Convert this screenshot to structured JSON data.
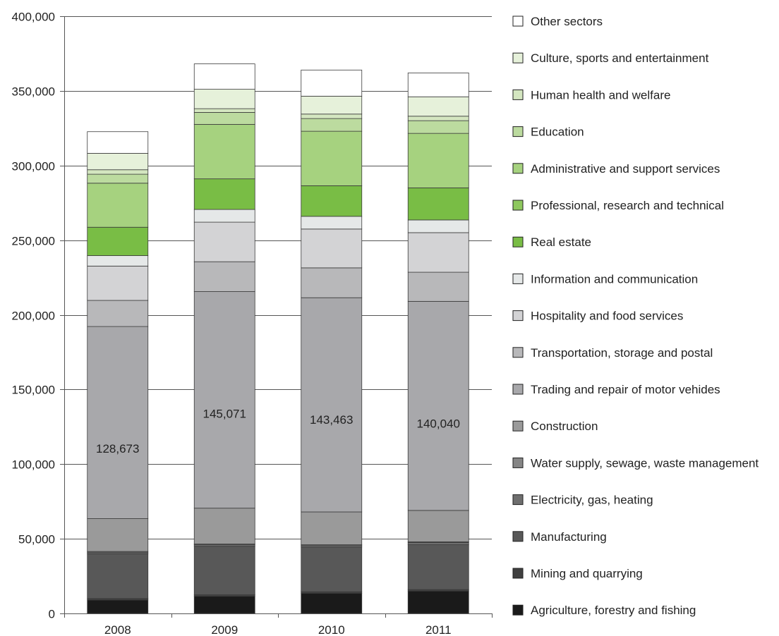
{
  "chart_data": {
    "type": "bar",
    "stacked": true,
    "title": "",
    "xlabel": "",
    "ylabel": "",
    "ylim": [
      0,
      400000
    ],
    "yticks": [
      0,
      50000,
      100000,
      150000,
      200000,
      250000,
      300000,
      350000,
      400000
    ],
    "ytick_labels": [
      "0",
      "50,000",
      "100,000",
      "150,000",
      "200,000",
      "250,000",
      "300,000",
      "350,000",
      "400,000"
    ],
    "grid": "horizontal",
    "legend_position": "right",
    "categories": [
      "2008",
      "2009",
      "2010",
      "2011"
    ],
    "series": [
      {
        "name": "Agriculture, forestry and fishing",
        "color": "#1a1a1a",
        "values": [
          9000,
          11500,
          13500,
          15000
        ]
      },
      {
        "name": "Mining and quarrying",
        "color": "#404040",
        "values": [
          1000,
          1000,
          1000,
          1000
        ]
      },
      {
        "name": "Manufacturing",
        "color": "#585858",
        "values": [
          30000,
          32500,
          30000,
          30000
        ]
      },
      {
        "name": "Electricity, gas, heating",
        "color": "#6e6e6e",
        "values": [
          1000,
          1000,
          1000,
          1500
        ]
      },
      {
        "name": "Water supply, sewage, waste management",
        "color": "#858585",
        "values": [
          500,
          500,
          500,
          500
        ]
      },
      {
        "name": "Construction",
        "color": "#9a9a9a",
        "values": [
          22000,
          24000,
          22000,
          21000
        ]
      },
      {
        "name": "Trading and repair of motor vehicles",
        "color": "#a8a8ab",
        "values": [
          128673,
          145071,
          143463,
          140040
        ]
      },
      {
        "name": "Transportation, storage and postal",
        "color": "#b8b8ba",
        "values": [
          17500,
          20000,
          20000,
          19500
        ]
      },
      {
        "name": "Hospitality and food services",
        "color": "#d3d3d5",
        "values": [
          23000,
          26500,
          26000,
          26500
        ]
      },
      {
        "name": "Information and communication",
        "color": "#e5e8e8",
        "values": [
          7000,
          8500,
          8500,
          8500
        ]
      },
      {
        "name": "Real estate",
        "color": "#79bd45",
        "values": [
          19000,
          20500,
          20500,
          21500
        ]
      },
      {
        "name": "Professional, research and technical",
        "color": "#8ec85e",
        "values": [
          0,
          0,
          0,
          0
        ]
      },
      {
        "name": "Administrative and support services",
        "color": "#a6d27f",
        "values": [
          29500,
          36500,
          36500,
          36500
        ]
      },
      {
        "name": "Education",
        "color": "#bcdb9f",
        "values": [
          6000,
          8000,
          8500,
          8500
        ]
      },
      {
        "name": "Human health and welfare",
        "color": "#d4e6c0",
        "values": [
          3000,
          2500,
          3000,
          3000
        ]
      },
      {
        "name": "Culture, sports and entertainment",
        "color": "#e6f1da",
        "values": [
          11000,
          13000,
          12000,
          13000
        ]
      },
      {
        "name": "Other sectors",
        "color": "#ffffff",
        "values": [
          14500,
          17000,
          17500,
          16000
        ]
      }
    ],
    "data_labels": [
      {
        "category": "2008",
        "series": "Trading and repair of motor vehicles",
        "text": "128,673"
      },
      {
        "category": "2009",
        "series": "Trading and repair of motor vehicles",
        "text": "145,071"
      },
      {
        "category": "2010",
        "series": "Trading and repair of motor vehicles",
        "text": "143,463"
      },
      {
        "category": "2011",
        "series": "Trading and repair of motor vehicles",
        "text": "140,040"
      }
    ],
    "legend_entries": [
      "Other sectors",
      "Culture, sports and entertainment",
      "Human health and welfare",
      "Education",
      "Administrative and support services",
      "Professional, research and technical",
      "Real estate",
      "Information and communication",
      "Hospitality and food services",
      "Transportation, storage and postal",
      "Trading and repair of motor vehicles",
      "Construction",
      "Water supply, sewage, waste management",
      "Electricity, gas, heating",
      "Manufacturing",
      "Mining and quarrying",
      "Agriculture, forestry and fishing"
    ],
    "legend_labels": [
      "Other sectors",
      "Culture, sports and entertainment",
      "Human health and welfare",
      "Education",
      "Administrative and support services",
      "Professional, research and technical",
      "Real estate",
      "Information and communication",
      "Hospitality and food services",
      "Transportation, storage and postal",
      "Trading and repair of motor vehides",
      "Construction",
      "Water supply, sewage, waste management",
      "Electricity, gas, heating",
      "Manufacturing",
      "Mining and quarrying",
      "Agriculture, forestry and fishing"
    ]
  }
}
